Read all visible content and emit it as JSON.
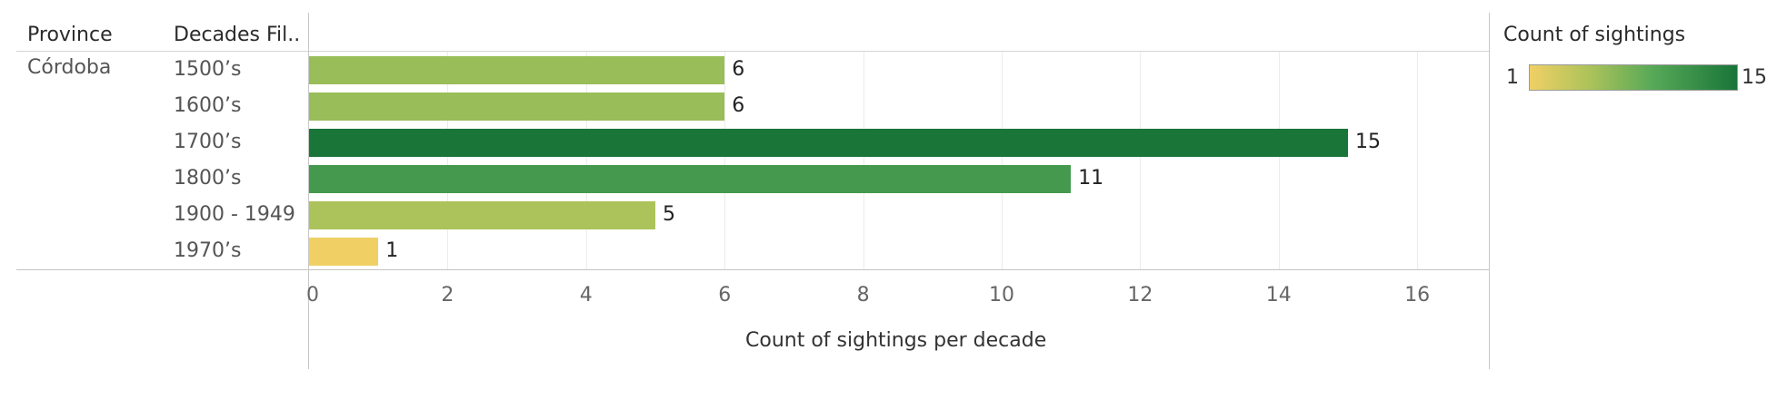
{
  "headers": {
    "province": "Province",
    "decades": "Decades Fil.."
  },
  "province": "Córdoba",
  "legend": {
    "title": "Count of sightings",
    "min": "1",
    "max": "15",
    "colors": [
      "#f0d065",
      "#a9c25a",
      "#55a857",
      "#197538"
    ]
  },
  "chart_data": {
    "type": "bar",
    "orientation": "horizontal",
    "categories": [
      "1500’s",
      "1600’s",
      "1700’s",
      "1800’s",
      "1900 - 1949",
      "1970’s"
    ],
    "values": [
      6,
      6,
      15,
      11,
      5,
      1
    ],
    "xlabel": "Count of sightings per decade",
    "ylabel": "",
    "xlim": [
      0,
      16
    ],
    "x_ticks": [
      "0",
      "2",
      "4",
      "6",
      "8",
      "10",
      "12",
      "14",
      "16"
    ],
    "color_scale": {
      "min": 1,
      "max": 15
    },
    "grid": true
  }
}
